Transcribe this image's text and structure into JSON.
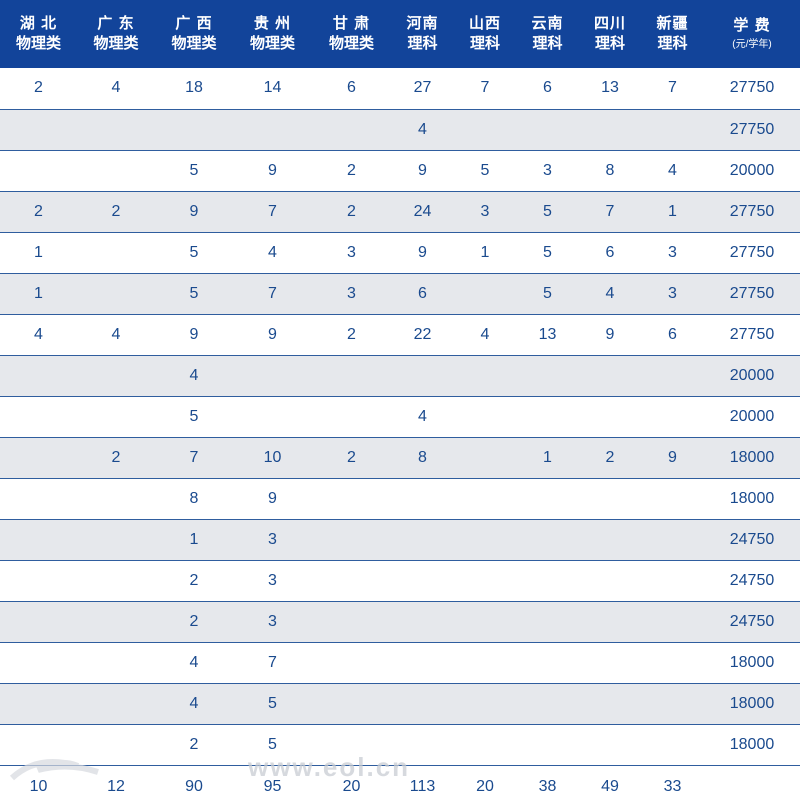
{
  "columns": [
    {
      "line1": "湖 北",
      "line2": "物理类"
    },
    {
      "line1": "广 东",
      "line2": "物理类"
    },
    {
      "line1": "广 西",
      "line2": "物理类"
    },
    {
      "line1": "贵 州",
      "line2": "物理类"
    },
    {
      "line1": "甘 肃",
      "line2": "物理类"
    },
    {
      "line1": "河南",
      "line2": "理科"
    },
    {
      "line1": "山西",
      "line2": "理科"
    },
    {
      "line1": "云南",
      "line2": "理科"
    },
    {
      "line1": "四川",
      "line2": "理科"
    },
    {
      "line1": "新疆",
      "line2": "理科"
    },
    {
      "line1": "学 费",
      "line2": "(元/学年)"
    }
  ],
  "rows": [
    [
      "2",
      "4",
      "18",
      "14",
      "6",
      "27",
      "7",
      "6",
      "13",
      "7",
      "27750"
    ],
    [
      "",
      "",
      "",
      "",
      "",
      "4",
      "",
      "",
      "",
      "",
      "27750"
    ],
    [
      "",
      "",
      "5",
      "9",
      "2",
      "9",
      "5",
      "3",
      "8",
      "4",
      "20000"
    ],
    [
      "2",
      "2",
      "9",
      "7",
      "2",
      "24",
      "3",
      "5",
      "7",
      "1",
      "27750"
    ],
    [
      "1",
      "",
      "5",
      "4",
      "3",
      "9",
      "1",
      "5",
      "6",
      "3",
      "27750"
    ],
    [
      "1",
      "",
      "5",
      "7",
      "3",
      "6",
      "",
      "5",
      "4",
      "3",
      "27750"
    ],
    [
      "4",
      "4",
      "9",
      "9",
      "2",
      "22",
      "4",
      "13",
      "9",
      "6",
      "27750"
    ],
    [
      "",
      "",
      "4",
      "",
      "",
      "",
      "",
      "",
      "",
      "",
      "20000"
    ],
    [
      "",
      "",
      "5",
      "",
      "",
      "4",
      "",
      "",
      "",
      "",
      "20000"
    ],
    [
      "",
      "2",
      "7",
      "10",
      "2",
      "8",
      "",
      "1",
      "2",
      "9",
      "18000"
    ],
    [
      "",
      "",
      "8",
      "9",
      "",
      "",
      "",
      "",
      "",
      "",
      "18000"
    ],
    [
      "",
      "",
      "1",
      "3",
      "",
      "",
      "",
      "",
      "",
      "",
      "24750"
    ],
    [
      "",
      "",
      "2",
      "3",
      "",
      "",
      "",
      "",
      "",
      "",
      "24750"
    ],
    [
      "",
      "",
      "2",
      "3",
      "",
      "",
      "",
      "",
      "",
      "",
      "24750"
    ],
    [
      "",
      "",
      "4",
      "7",
      "",
      "",
      "",
      "",
      "",
      "",
      "18000"
    ],
    [
      "",
      "",
      "4",
      "5",
      "",
      "",
      "",
      "",
      "",
      "",
      "18000"
    ],
    [
      "",
      "",
      "2",
      "5",
      "",
      "",
      "",
      "",
      "",
      "",
      "18000"
    ]
  ],
  "totals": [
    "10",
    "12",
    "90",
    "95",
    "20",
    "113",
    "20",
    "38",
    "49",
    "33",
    ""
  ],
  "watermark": {
    "text": "www.eol.cn",
    "color": "#c9cdd3"
  },
  "colors": {
    "header_bg": "#12449a",
    "header_text": "#ffffff",
    "cell_text": "#1a4a8e",
    "zebra": "#e6e8ec",
    "rule": "#2f5d9e"
  }
}
